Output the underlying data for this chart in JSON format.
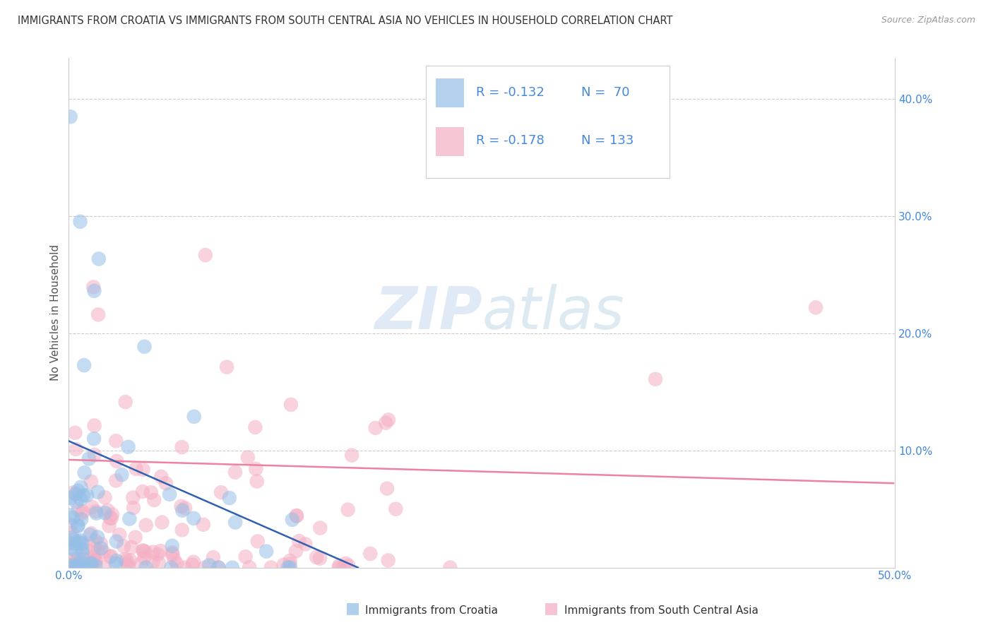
{
  "title": "IMMIGRANTS FROM CROATIA VS IMMIGRANTS FROM SOUTH CENTRAL ASIA NO VEHICLES IN HOUSEHOLD CORRELATION CHART",
  "source": "Source: ZipAtlas.com",
  "ylabel": "No Vehicles in Household",
  "x_lim": [
    0.0,
    0.5
  ],
  "y_lim": [
    0.0,
    0.435
  ],
  "croatia_color": "#94bfe8",
  "croatia_edge_color": "#94bfe8",
  "sca_color": "#f4afc4",
  "sca_edge_color": "#f4afc4",
  "trendline_croatia_color": "#3060b0",
  "trendline_sca_color": "#f080a0",
  "legend_text_color": "#4488dd",
  "watermark_color": "#d8e8f4",
  "grid_color": "#cccccc",
  "tick_color": "#4488dd",
  "legend_r1": "R = -0.132",
  "legend_n1": "N =  70",
  "legend_r2": "R = -0.178",
  "legend_n2": "N = 133",
  "bottom_label1": "Immigrants from Croatia",
  "bottom_label2": "Immigrants from South Central Asia",
  "croatia_trend_x": [
    0.0,
    0.175
  ],
  "croatia_trend_y": [
    0.108,
    0.0
  ],
  "sca_trend_x": [
    0.0,
    0.499
  ],
  "sca_trend_y": [
    0.092,
    0.072
  ]
}
